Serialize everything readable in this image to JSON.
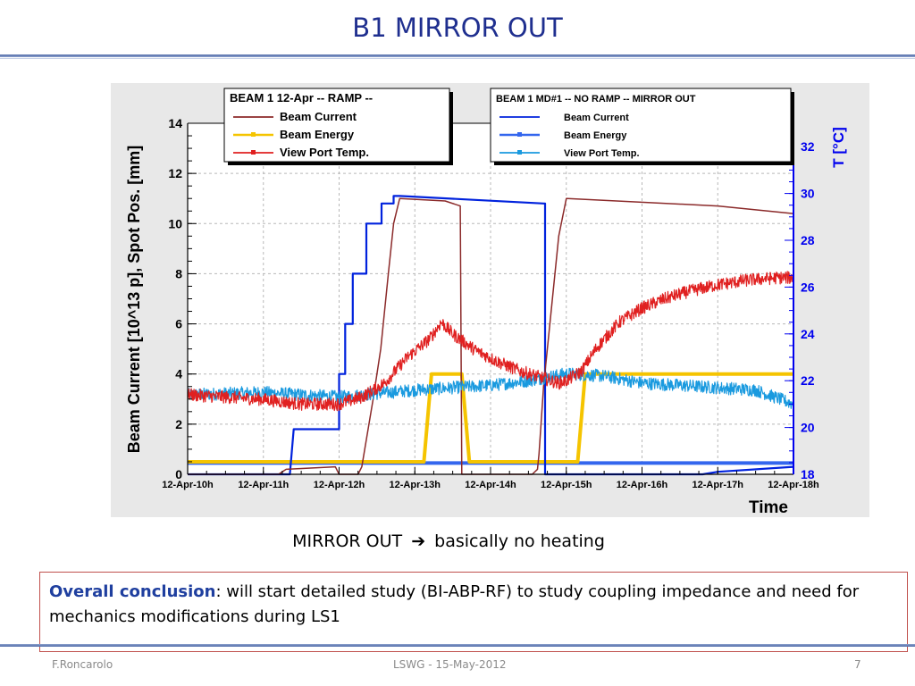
{
  "slide": {
    "title": "B1 MIRROR OUT",
    "caption_pre": "MIRROR OUT",
    "caption_arrow": "➔",
    "caption_post": "basically no heating",
    "conclusion_label": "Overall conclusion",
    "conclusion_text": ": will start detailed study (BI-ABP-RF) to study coupling impedance and need for mechanics modifications during LS1",
    "footer_author": "F.Roncarolo",
    "footer_event": "LSWG - 15-May-2012",
    "footer_page": "7",
    "colors": {
      "title": "#1f2f8f",
      "accent_label": "#1f3f9f",
      "box_border": "#c0504d"
    }
  },
  "chart_data": {
    "type": "line",
    "xlabel": "Time",
    "ylabel": "Beam Current [10^13 p],  Spot Pos. [mm]",
    "y2label": "T [°C]",
    "x": [
      "12-Apr-10h",
      "12-Apr-11h",
      "12-Apr-12h",
      "12-Apr-13h",
      "12-Apr-14h",
      "12-Apr-15h",
      "12-Apr-16h",
      "12-Apr-17h",
      "12-Apr-18h"
    ],
    "xlim_hours": [
      10,
      18
    ],
    "ylim": [
      0,
      14
    ],
    "y_ticks": [
      "0",
      "2",
      "4",
      "6",
      "8",
      "10",
      "12",
      "14"
    ],
    "y2lim": [
      18,
      33
    ],
    "y2_ticks": [
      "18",
      "20",
      "22",
      "24",
      "26",
      "28",
      "30",
      "32"
    ],
    "grid": true,
    "legends": [
      {
        "title": "BEAM 1 12-Apr -- RAMP --",
        "placement": "top-left",
        "entries": [
          "Beam Current",
          "Beam Energy",
          "View Port Temp."
        ]
      },
      {
        "title": "BEAM 1 MD#1 -- NO RAMP -- MIRROR OUT",
        "placement": "top-right",
        "entries": [
          "Beam Current",
          "Beam Energy",
          "View Port Temp."
        ]
      }
    ],
    "series": [
      {
        "name": "Beam Current",
        "legend": 0,
        "axis": "left",
        "color": "#8b2a2a",
        "x": [
          10.0,
          11.2,
          11.3,
          11.95,
          12.0,
          12.05,
          12.25,
          12.3,
          12.45,
          12.55,
          12.65,
          12.72,
          12.8,
          13.4,
          13.6,
          13.62,
          14.3,
          14.55,
          14.62,
          14.64,
          14.7,
          14.8,
          14.9,
          15.0,
          17.0,
          18.0
        ],
        "y": [
          0.0,
          0.0,
          0.2,
          0.3,
          0.0,
          0.0,
          0.0,
          0.3,
          3.0,
          5.0,
          8.0,
          10.0,
          11.0,
          10.9,
          10.7,
          0.0,
          0.0,
          0.0,
          0.2,
          0.8,
          3.5,
          6.5,
          9.5,
          11.0,
          10.7,
          10.4
        ]
      },
      {
        "name": "Beam Energy",
        "legend": 0,
        "axis": "left",
        "color": "#f5c400",
        "x": [
          10.0,
          12.7,
          13.12,
          13.22,
          13.62,
          13.72,
          14.1,
          14.68,
          15.0,
          15.15,
          15.25,
          18.0
        ],
        "y": [
          0.5,
          0.5,
          0.5,
          4.0,
          4.0,
          0.5,
          0.5,
          0.5,
          0.5,
          0.5,
          4.0,
          4.0
        ]
      },
      {
        "name": "View Port Temp.",
        "legend": 0,
        "axis": "right",
        "color": "#e02020",
        "x": [
          10.0,
          10.5,
          11.0,
          11.5,
          12.0,
          12.3,
          12.6,
          12.9,
          13.2,
          13.35,
          13.5,
          13.8,
          14.1,
          14.4,
          14.7,
          14.9,
          15.0,
          15.2,
          15.4,
          15.7,
          16.0,
          16.3,
          16.6,
          17.0,
          17.4,
          17.8,
          18.0
        ],
        "y": [
          21.4,
          21.3,
          21.2,
          21.0,
          21.0,
          21.3,
          21.9,
          23.0,
          23.8,
          24.5,
          24.0,
          23.3,
          22.8,
          22.4,
          22.1,
          21.9,
          22.0,
          22.4,
          23.4,
          24.5,
          25.1,
          25.5,
          25.8,
          26.1,
          26.3,
          26.4,
          26.4
        ]
      },
      {
        "name": "Beam Current",
        "legend": 1,
        "axis": "left",
        "color": "#0022dd",
        "x": [
          10.0,
          11.35,
          11.4,
          11.6,
          11.65,
          11.8,
          12.0,
          12.0,
          12.08,
          12.08,
          12.18,
          12.18,
          12.36,
          12.36,
          12.56,
          12.56,
          12.72,
          12.72,
          12.8,
          12.8,
          14.7,
          14.72,
          14.72,
          16.8,
          17.0,
          18.0
        ],
        "y": [
          0.0,
          0.0,
          1.8,
          1.8,
          1.8,
          1.8,
          1.8,
          4.0,
          4.0,
          6.0,
          6.0,
          8.0,
          8.0,
          10.0,
          10.0,
          10.8,
          10.8,
          11.1,
          11.1,
          11.1,
          10.8,
          10.8,
          0.0,
          0.0,
          0.1,
          0.3
        ]
      },
      {
        "name": "Beam Energy",
        "legend": 1,
        "axis": "left",
        "color": "#3366ee",
        "x": [
          10.0,
          18.0
        ],
        "y": [
          0.45,
          0.45
        ]
      },
      {
        "name": "View Port Temp.",
        "legend": 1,
        "axis": "right",
        "color": "#1a9adf",
        "x": [
          10.0,
          11.0,
          12.0,
          13.0,
          14.0,
          14.5,
          15.0,
          15.5,
          16.0,
          16.5,
          17.0,
          17.5,
          18.0
        ],
        "y": [
          21.4,
          21.5,
          21.3,
          21.6,
          21.8,
          22.0,
          22.3,
          22.2,
          21.9,
          21.8,
          21.7,
          21.6,
          21.0
        ]
      }
    ]
  }
}
